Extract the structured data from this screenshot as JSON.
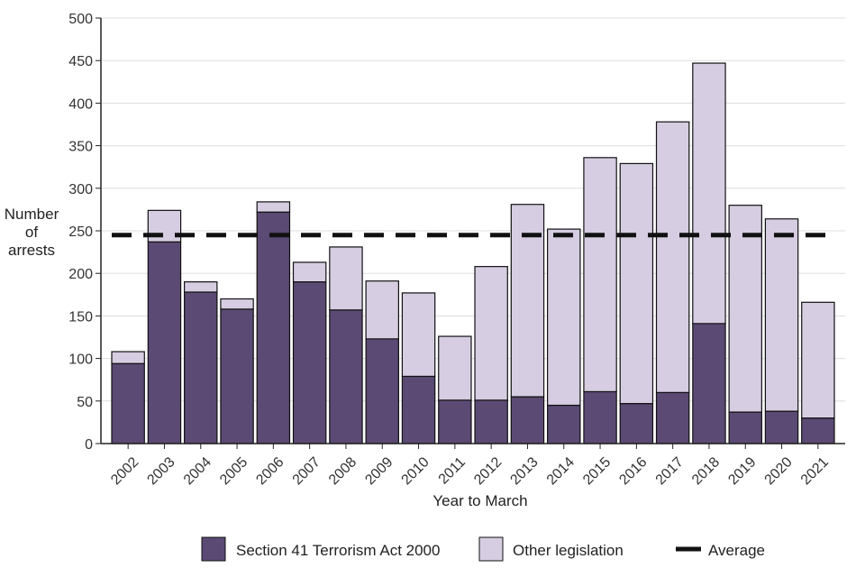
{
  "chart_data": {
    "type": "bar",
    "stacked": true,
    "title": "",
    "xlabel": "Year to March",
    "ylabel": [
      "Number",
      "of",
      "arrests"
    ],
    "ylim": [
      0,
      500
    ],
    "yticks": [
      0,
      50,
      100,
      150,
      200,
      250,
      300,
      350,
      400,
      450,
      500
    ],
    "grid": "horizontal",
    "legend_position": "bottom",
    "categories": [
      "2002",
      "2003",
      "2004",
      "2005",
      "2006",
      "2007",
      "2008",
      "2009",
      "2010",
      "2011",
      "2012",
      "2013",
      "2014",
      "2015",
      "2016",
      "2017",
      "2018",
      "2019",
      "2020",
      "2021"
    ],
    "series": [
      {
        "name": "Section 41 Terrorism Act 2000",
        "color": "#5b4a73",
        "values": [
          94,
          237,
          178,
          158,
          272,
          190,
          157,
          123,
          79,
          51,
          51,
          55,
          45,
          61,
          47,
          60,
          141,
          37,
          38,
          30
        ]
      },
      {
        "name": "Other legislation",
        "color": "#d6cde2",
        "values": [
          14,
          37,
          12,
          12,
          12,
          23,
          74,
          68,
          98,
          75,
          157,
          226,
          207,
          275,
          282,
          318,
          306,
          243,
          226,
          136
        ]
      }
    ],
    "reference_line": {
      "name": "Average",
      "value": 245,
      "style": "dashed",
      "color": "#111111"
    }
  }
}
